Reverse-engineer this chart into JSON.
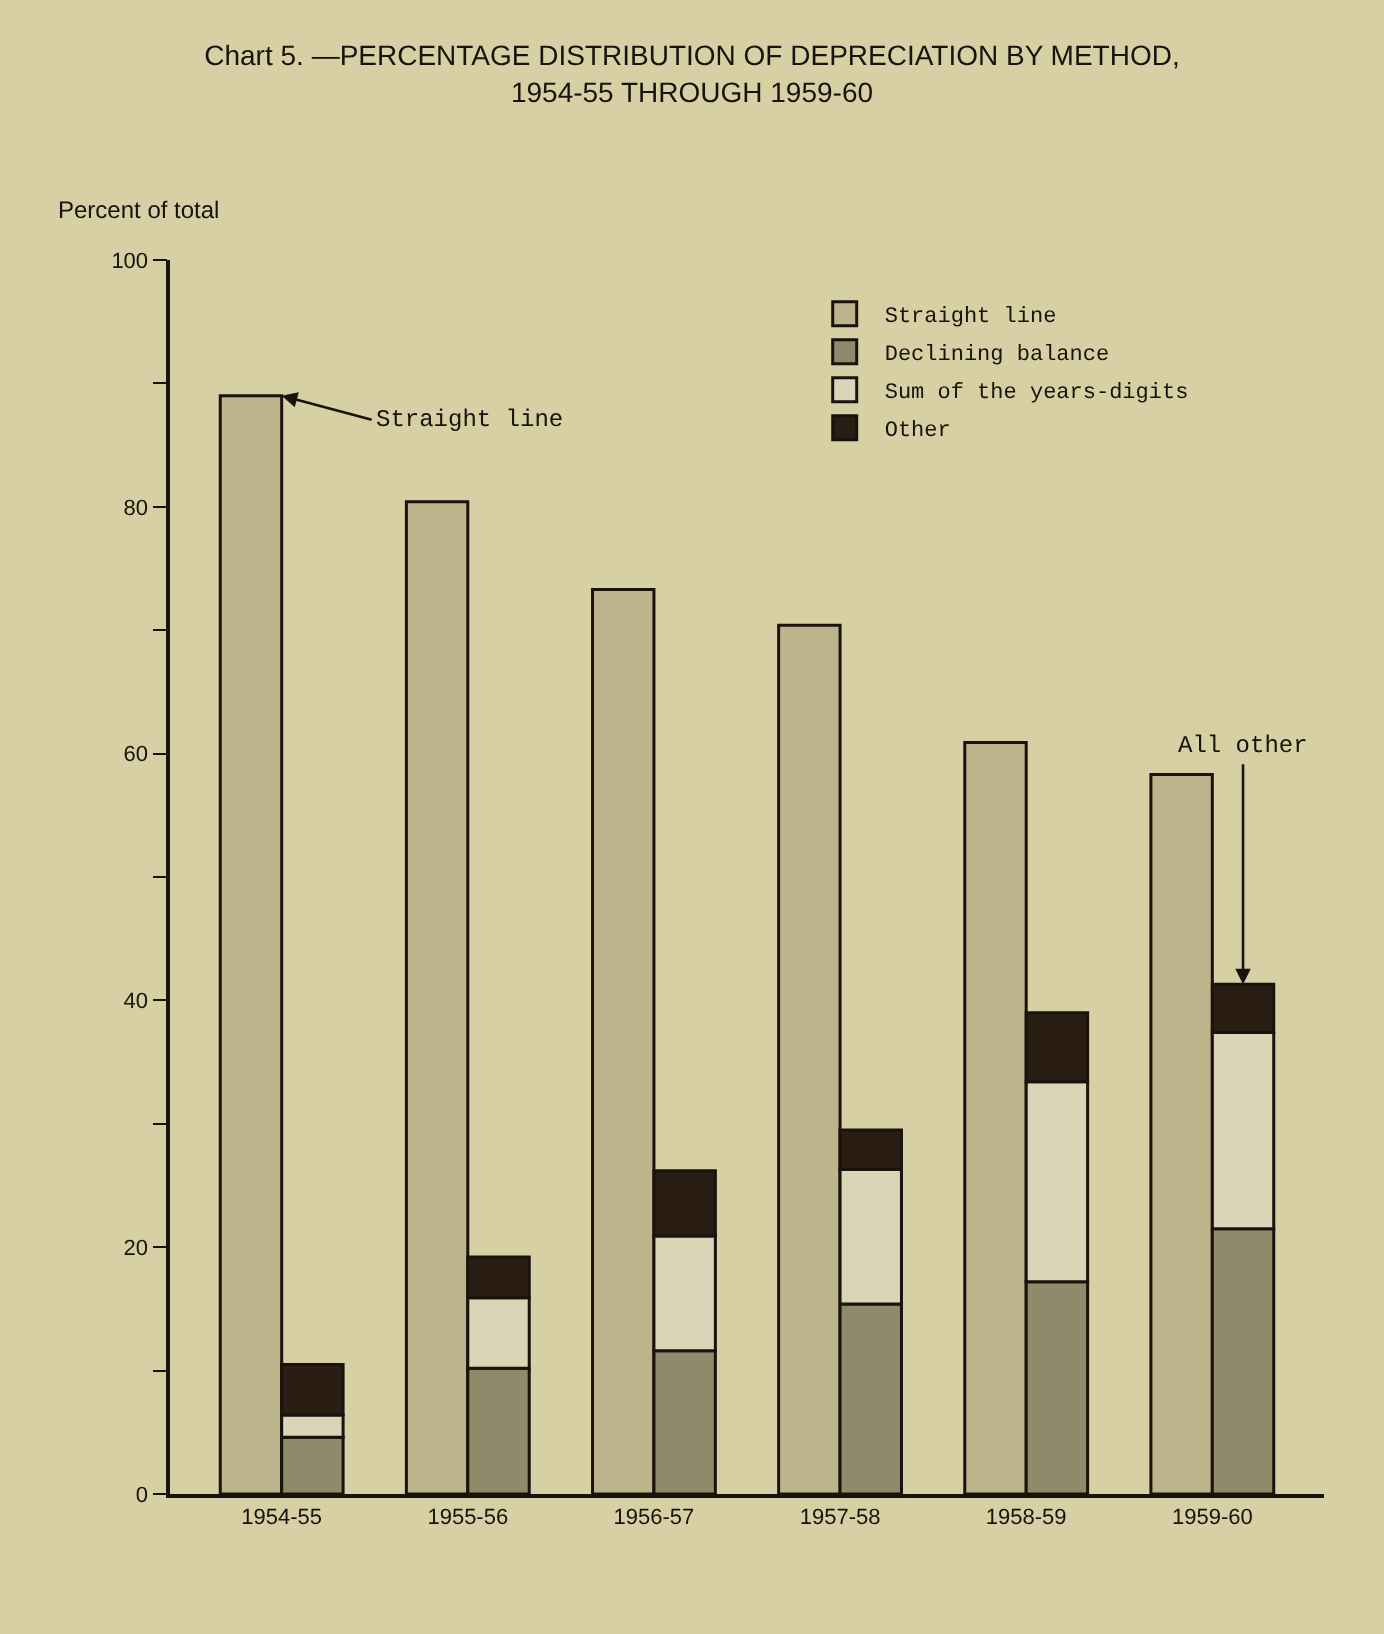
{
  "chart_data": {
    "type": "bar",
    "title": "Chart 5. —PERCENTAGE DISTRIBUTION OF DEPRECIATION BY METHOD,\n1954-55 THROUGH 1959-60",
    "ylabel": "Percent of total",
    "categories": [
      "1954-55",
      "1955-56",
      "1956-57",
      "1957-58",
      "1958-59",
      "1959-60"
    ],
    "series": [
      {
        "name": "Straight line",
        "color": "#bdb48c",
        "values": [
          89.0,
          80.4,
          73.3,
          70.4,
          60.9,
          58.3
        ]
      },
      {
        "name": "Declining balance",
        "color": "#8e8a6a",
        "base": [
          0,
          0,
          0,
          0,
          0,
          0
        ],
        "values": [
          4.6,
          10.2,
          11.6,
          15.4,
          17.2,
          21.5
        ]
      },
      {
        "name": "Sum of the years-digits",
        "color": "#d9d5b6",
        "base": [
          4.6,
          10.2,
          11.6,
          15.4,
          17.2,
          21.5
        ],
        "values": [
          1.8,
          5.7,
          9.3,
          10.9,
          16.2,
          15.9
        ]
      },
      {
        "name": "Other",
        "color": "#2a1e14",
        "base": [
          6.4,
          15.9,
          20.9,
          26.3,
          33.4,
          37.4
        ],
        "values": [
          4.1,
          3.3,
          5.3,
          3.2,
          5.6,
          3.9
        ]
      }
    ],
    "ylim": [
      0,
      100
    ],
    "yticks": [
      0,
      {
        "value": 10,
        "label": null
      },
      20,
      {
        "value": 30,
        "label": null
      },
      40,
      {
        "value": 50,
        "label": null
      },
      60,
      {
        "value": 70,
        "label": null
      },
      80,
      {
        "value": 90,
        "label": null
      },
      100
    ],
    "grid": false,
    "legend": "top right",
    "annotations": [
      {
        "text": "Straight line",
        "x": "1954-55",
        "y": 89.0
      },
      {
        "text": "All other",
        "y": 41.3
      }
    ]
  }
}
